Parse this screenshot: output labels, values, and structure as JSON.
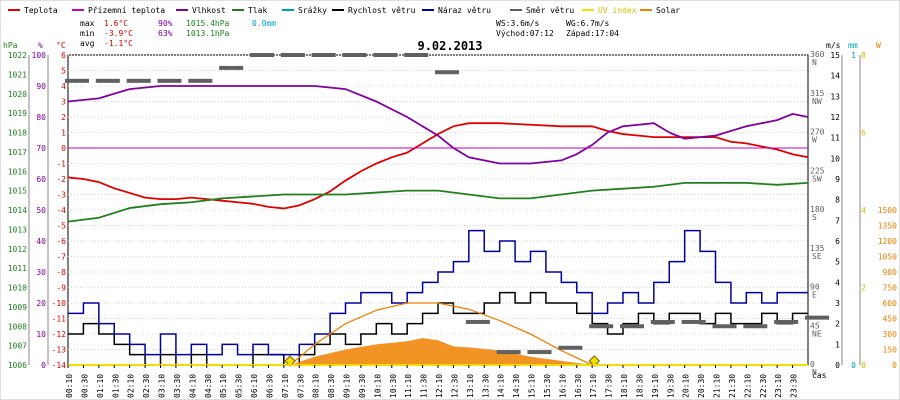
{
  "legend": [
    {
      "label": "Teplota",
      "color": "#e00000"
    },
    {
      "label": "Přízemní teplota",
      "color": "#c000c0"
    },
    {
      "label": "Vlhkost",
      "color": "#8000a0"
    },
    {
      "label": "Tlak",
      "color": "#208020"
    },
    {
      "label": "Srážky",
      "color": "#00a0c0"
    },
    {
      "label": "Rychlost větru",
      "color": "#000000"
    },
    {
      "label": "Náraz větru",
      "color": "#0000a0"
    },
    {
      "label": "Směr větru",
      "color": "#606060"
    },
    {
      "label": "UV index",
      "color": "#f0e000"
    },
    {
      "label": "Solar",
      "color": "#f08000"
    }
  ],
  "stats": {
    "max_label": "max",
    "max_temp": "1.6°C",
    "max_hum": "90%",
    "max_press": "1015.4hPa",
    "max_rain": "0.0mm",
    "min_label": "min",
    "min_temp": "-3.9°C",
    "min_hum": "63%",
    "min_press": "1013.1hPa",
    "avg_label": "avg",
    "avg_temp": "-1.1°C"
  },
  "date": "9.02.2013",
  "wind_info": {
    "ws": "WS:3.6m/s",
    "wg": "WG:6.7m/s",
    "sunrise": "Východ:07:12",
    "sunset": "Západ:17:04"
  },
  "axis_units": {
    "hpa": "hPa",
    "pct": "%",
    "degc": "°C",
    "ms": "m/s",
    "mm": "mm",
    "w": "W",
    "time": "čas"
  },
  "chart_data": {
    "type": "line",
    "date": "9.02.2013",
    "x_ticks": [
      "00:10",
      "00:30",
      "01:10",
      "01:30",
      "02:10",
      "02:30",
      "03:10",
      "03:30",
      "04:10",
      "04:30",
      "05:10",
      "05:30",
      "06:10",
      "06:30",
      "07:10",
      "07:30",
      "08:10",
      "08:30",
      "09:10",
      "09:30",
      "10:10",
      "10:30",
      "11:10",
      "11:30",
      "12:10",
      "12:30",
      "13:10",
      "13:30",
      "14:10",
      "14:30",
      "15:10",
      "15:30",
      "16:10",
      "16:30",
      "17:10",
      "17:30",
      "18:10",
      "18:30",
      "19:10",
      "19:30",
      "20:10",
      "20:30",
      "21:10",
      "21:30",
      "22:10",
      "22:30",
      "23:10",
      "23:30"
    ],
    "axes": {
      "pressure_hpa": {
        "ticks": [
          "1022",
          "1021",
          "1020",
          "1019",
          "1018",
          "1017",
          "1016",
          "1015",
          "1014",
          "1013",
          "1012",
          "1011",
          "1010",
          "1009",
          "1008",
          "1007",
          "1006"
        ]
      },
      "humidity_pct": {
        "ticks": [
          "100",
          "90",
          "80",
          "70",
          "60",
          "50",
          "40",
          "30",
          "20",
          "10",
          "0"
        ]
      },
      "temperature_c": {
        "ticks": [
          "6",
          "5",
          "4",
          "3",
          "2",
          "1",
          "0",
          "-1",
          "-2",
          "-3",
          "-4",
          "-5",
          "-6",
          "-7",
          "-8",
          "-9",
          "-10",
          "-11",
          "-12",
          "-13",
          "-14"
        ]
      },
      "wind_dir": {
        "ticks": [
          "360",
          "315",
          "270",
          "225",
          "180",
          "135",
          "90",
          "45",
          "0"
        ],
        "labels": [
          "N",
          "NW",
          "W",
          "SW",
          "S",
          "SE",
          "E",
          "NE",
          "N"
        ]
      },
      "wind_ms": {
        "ticks": [
          "15",
          "14",
          "13",
          "12",
          "11",
          "10",
          "9",
          "8",
          "7",
          "6",
          "5",
          "4",
          "3",
          "2",
          "1",
          "0"
        ]
      },
      "rain_mm": {
        "ticks": [
          "1",
          "0"
        ]
      },
      "uv": {
        "ticks": [
          "8",
          "6",
          "4",
          "2",
          "0"
        ]
      },
      "solar_w": {
        "ticks": [
          "1500",
          "1350",
          "1200",
          "1050",
          "900",
          "750",
          "600",
          "450",
          "300",
          "150",
          "0"
        ]
      }
    },
    "series": [
      {
        "name": "Teplota",
        "unit": "°C",
        "color": "#e00000",
        "points": [
          [
            0.0,
            -1.9
          ],
          [
            0.5,
            -2.0
          ],
          [
            1.0,
            -2.2
          ],
          [
            1.5,
            -2.6
          ],
          [
            2.0,
            -2.9
          ],
          [
            2.5,
            -3.2
          ],
          [
            3.0,
            -3.3
          ],
          [
            3.5,
            -3.3
          ],
          [
            4.0,
            -3.2
          ],
          [
            4.5,
            -3.3
          ],
          [
            5.0,
            -3.4
          ],
          [
            5.5,
            -3.5
          ],
          [
            6.0,
            -3.6
          ],
          [
            6.5,
            -3.8
          ],
          [
            7.0,
            -3.9
          ],
          [
            7.5,
            -3.7
          ],
          [
            8.0,
            -3.3
          ],
          [
            8.5,
            -2.8
          ],
          [
            9.0,
            -2.1
          ],
          [
            9.5,
            -1.5
          ],
          [
            10.0,
            -1.0
          ],
          [
            10.5,
            -0.6
          ],
          [
            11.0,
            -0.3
          ],
          [
            11.5,
            0.3
          ],
          [
            12.0,
            0.9
          ],
          [
            12.5,
            1.4
          ],
          [
            13.0,
            1.6
          ],
          [
            14.0,
            1.6
          ],
          [
            15.0,
            1.5
          ],
          [
            16.0,
            1.4
          ],
          [
            17.0,
            1.4
          ],
          [
            17.5,
            1.1
          ],
          [
            18.0,
            0.9
          ],
          [
            19.0,
            0.7
          ],
          [
            20.0,
            0.7
          ],
          [
            21.0,
            0.7
          ],
          [
            21.5,
            0.4
          ],
          [
            22.0,
            0.3
          ],
          [
            22.5,
            0.1
          ],
          [
            23.0,
            -0.1
          ],
          [
            23.5,
            -0.4
          ],
          [
            24.0,
            -0.6
          ]
        ]
      },
      {
        "name": "Vlhkost",
        "unit": "%",
        "color": "#8000a0",
        "points": [
          [
            0.0,
            85
          ],
          [
            1.0,
            86
          ],
          [
            2.0,
            89
          ],
          [
            3.0,
            90
          ],
          [
            4.0,
            90
          ],
          [
            5.0,
            90
          ],
          [
            6.0,
            90
          ],
          [
            7.0,
            90
          ],
          [
            8.0,
            90
          ],
          [
            9.0,
            89
          ],
          [
            10.0,
            85
          ],
          [
            11.0,
            80
          ],
          [
            12.0,
            74
          ],
          [
            12.5,
            70
          ],
          [
            13.0,
            67
          ],
          [
            14.0,
            65
          ],
          [
            15.0,
            65
          ],
          [
            16.0,
            66
          ],
          [
            16.5,
            68
          ],
          [
            17.0,
            71
          ],
          [
            17.5,
            75
          ],
          [
            18.0,
            77
          ],
          [
            19.0,
            78
          ],
          [
            19.5,
            75
          ],
          [
            20.0,
            73
          ],
          [
            21.0,
            74
          ],
          [
            22.0,
            77
          ],
          [
            23.0,
            79
          ],
          [
            23.5,
            81
          ],
          [
            24.0,
            80
          ]
        ]
      },
      {
        "name": "Přízemní teplota",
        "unit": "%",
        "color": "#c000c0",
        "points": [
          [
            0.0,
            70
          ],
          [
            24.0,
            70
          ]
        ]
      },
      {
        "name": "Tlak",
        "unit": "hPa",
        "color": "#208020",
        "points": [
          [
            0.0,
            1013.4
          ],
          [
            1.0,
            1013.6
          ],
          [
            2.0,
            1014.1
          ],
          [
            3.0,
            1014.3
          ],
          [
            4.0,
            1014.4
          ],
          [
            5.0,
            1014.6
          ],
          [
            6.0,
            1014.7
          ],
          [
            7.0,
            1014.8
          ],
          [
            8.0,
            1014.8
          ],
          [
            9.0,
            1014.8
          ],
          [
            10.0,
            1014.9
          ],
          [
            11.0,
            1015.0
          ],
          [
            12.0,
            1015.0
          ],
          [
            13.0,
            1014.8
          ],
          [
            14.0,
            1014.6
          ],
          [
            15.0,
            1014.6
          ],
          [
            16.0,
            1014.8
          ],
          [
            17.0,
            1015.0
          ],
          [
            18.0,
            1015.1
          ],
          [
            19.0,
            1015.2
          ],
          [
            20.0,
            1015.4
          ],
          [
            21.0,
            1015.4
          ],
          [
            22.0,
            1015.4
          ],
          [
            23.0,
            1015.3
          ],
          [
            24.0,
            1015.4
          ]
        ]
      },
      {
        "name": "Rychlost větru",
        "unit": "m/s",
        "color": "#000000",
        "points": [
          [
            0.0,
            1.5
          ],
          [
            0.5,
            2.0
          ],
          [
            1.0,
            1.5
          ],
          [
            1.5,
            1.0
          ],
          [
            2.0,
            0.5
          ],
          [
            2.5,
            0.0
          ],
          [
            3.0,
            0.5
          ],
          [
            3.5,
            0.0
          ],
          [
            4.0,
            0.5
          ],
          [
            4.5,
            0.0
          ],
          [
            5.0,
            0.0
          ],
          [
            6.0,
            0.5
          ],
          [
            7.0,
            0.0
          ],
          [
            7.5,
            0.5
          ],
          [
            8.0,
            1.0
          ],
          [
            8.5,
            1.5
          ],
          [
            9.0,
            1.0
          ],
          [
            9.5,
            1.5
          ],
          [
            10.0,
            2.0
          ],
          [
            10.5,
            1.5
          ],
          [
            11.0,
            2.0
          ],
          [
            11.5,
            2.5
          ],
          [
            12.0,
            3.0
          ],
          [
            12.5,
            2.5
          ],
          [
            13.0,
            2.5
          ],
          [
            13.5,
            3.0
          ],
          [
            14.0,
            3.5
          ],
          [
            14.5,
            3.0
          ],
          [
            15.0,
            3.5
          ],
          [
            15.5,
            3.0
          ],
          [
            16.0,
            3.0
          ],
          [
            16.5,
            2.5
          ],
          [
            17.0,
            2.0
          ],
          [
            17.5,
            1.5
          ],
          [
            18.0,
            2.0
          ],
          [
            18.5,
            2.5
          ],
          [
            19.0,
            2.0
          ],
          [
            19.5,
            2.5
          ],
          [
            20.0,
            2.5
          ],
          [
            20.5,
            2.0
          ],
          [
            21.0,
            2.5
          ],
          [
            21.5,
            2.0
          ],
          [
            22.0,
            2.0
          ],
          [
            22.5,
            2.5
          ],
          [
            23.0,
            2.0
          ],
          [
            23.5,
            2.5
          ],
          [
            24.0,
            2.5
          ]
        ]
      },
      {
        "name": "Náraz větru",
        "unit": "m/s",
        "color": "#0000a0",
        "points": [
          [
            0.0,
            2.5
          ],
          [
            0.5,
            3.0
          ],
          [
            1.0,
            2.0
          ],
          [
            1.5,
            1.5
          ],
          [
            2.0,
            1.0
          ],
          [
            2.5,
            0.5
          ],
          [
            3.0,
            1.5
          ],
          [
            3.5,
            0.5
          ],
          [
            4.0,
            1.0
          ],
          [
            4.5,
            0.5
          ],
          [
            5.0,
            1.0
          ],
          [
            5.5,
            0.5
          ],
          [
            6.0,
            1.0
          ],
          [
            6.5,
            0.5
          ],
          [
            7.0,
            0.5
          ],
          [
            7.5,
            1.0
          ],
          [
            8.0,
            1.5
          ],
          [
            8.5,
            2.5
          ],
          [
            9.0,
            3.0
          ],
          [
            9.5,
            3.5
          ],
          [
            10.0,
            3.5
          ],
          [
            10.5,
            3.0
          ],
          [
            11.0,
            3.5
          ],
          [
            11.5,
            4.0
          ],
          [
            12.0,
            4.5
          ],
          [
            12.5,
            5.0
          ],
          [
            13.0,
            6.5
          ],
          [
            13.5,
            5.5
          ],
          [
            14.0,
            6.0
          ],
          [
            14.5,
            5.0
          ],
          [
            15.0,
            5.5
          ],
          [
            15.5,
            4.5
          ],
          [
            16.0,
            4.0
          ],
          [
            16.5,
            3.5
          ],
          [
            17.0,
            2.5
          ],
          [
            17.5,
            3.0
          ],
          [
            18.0,
            3.5
          ],
          [
            18.5,
            3.0
          ],
          [
            19.0,
            4.0
          ],
          [
            19.5,
            5.0
          ],
          [
            20.0,
            6.5
          ],
          [
            20.5,
            5.5
          ],
          [
            21.0,
            4.0
          ],
          [
            21.5,
            3.0
          ],
          [
            22.0,
            3.5
          ],
          [
            22.5,
            3.0
          ],
          [
            23.0,
            3.5
          ],
          [
            24.0,
            3.5
          ]
        ]
      },
      {
        "name": "Solar",
        "unit": "W",
        "color": "#f08000",
        "points": [
          [
            7.2,
            0
          ],
          [
            8.0,
            80
          ],
          [
            9.0,
            150
          ],
          [
            10.0,
            200
          ],
          [
            11.0,
            230
          ],
          [
            11.5,
            260
          ],
          [
            12.0,
            240
          ],
          [
            12.5,
            180
          ],
          [
            13.0,
            170
          ],
          [
            14.0,
            140
          ],
          [
            15.0,
            80
          ],
          [
            16.0,
            40
          ],
          [
            16.5,
            20
          ],
          [
            17.0,
            0
          ]
        ]
      },
      {
        "name": "Solar max",
        "unit": "W",
        "color": "#f08000",
        "points": [
          [
            7.2,
            0
          ],
          [
            8.0,
            200
          ],
          [
            9.0,
            400
          ],
          [
            10.0,
            530
          ],
          [
            11.0,
            600
          ],
          [
            12.0,
            600
          ],
          [
            13.0,
            540
          ],
          [
            14.0,
            430
          ],
          [
            15.0,
            300
          ],
          [
            16.0,
            140
          ],
          [
            17.0,
            0
          ]
        ]
      },
      {
        "name": "Směr větru",
        "unit": "deg",
        "color": "#606060",
        "points": [
          [
            0.0,
            330
          ],
          [
            1.0,
            330
          ],
          [
            2.0,
            330
          ],
          [
            3.0,
            330
          ],
          [
            4.0,
            330
          ],
          [
            5.0,
            345
          ],
          [
            6.0,
            360
          ],
          [
            7.0,
            360
          ],
          [
            8.0,
            360
          ],
          [
            9.0,
            360
          ],
          [
            10.0,
            360
          ],
          [
            11.0,
            360
          ],
          [
            12.0,
            340
          ],
          [
            13.0,
            50
          ],
          [
            14.0,
            15
          ],
          [
            15.0,
            15
          ],
          [
            16.0,
            20
          ],
          [
            17.0,
            45
          ],
          [
            18.0,
            45
          ],
          [
            19.0,
            50
          ],
          [
            20.0,
            50
          ],
          [
            21.0,
            45
          ],
          [
            22.0,
            45
          ],
          [
            23.0,
            50
          ],
          [
            24.0,
            55
          ]
        ]
      }
    ]
  }
}
